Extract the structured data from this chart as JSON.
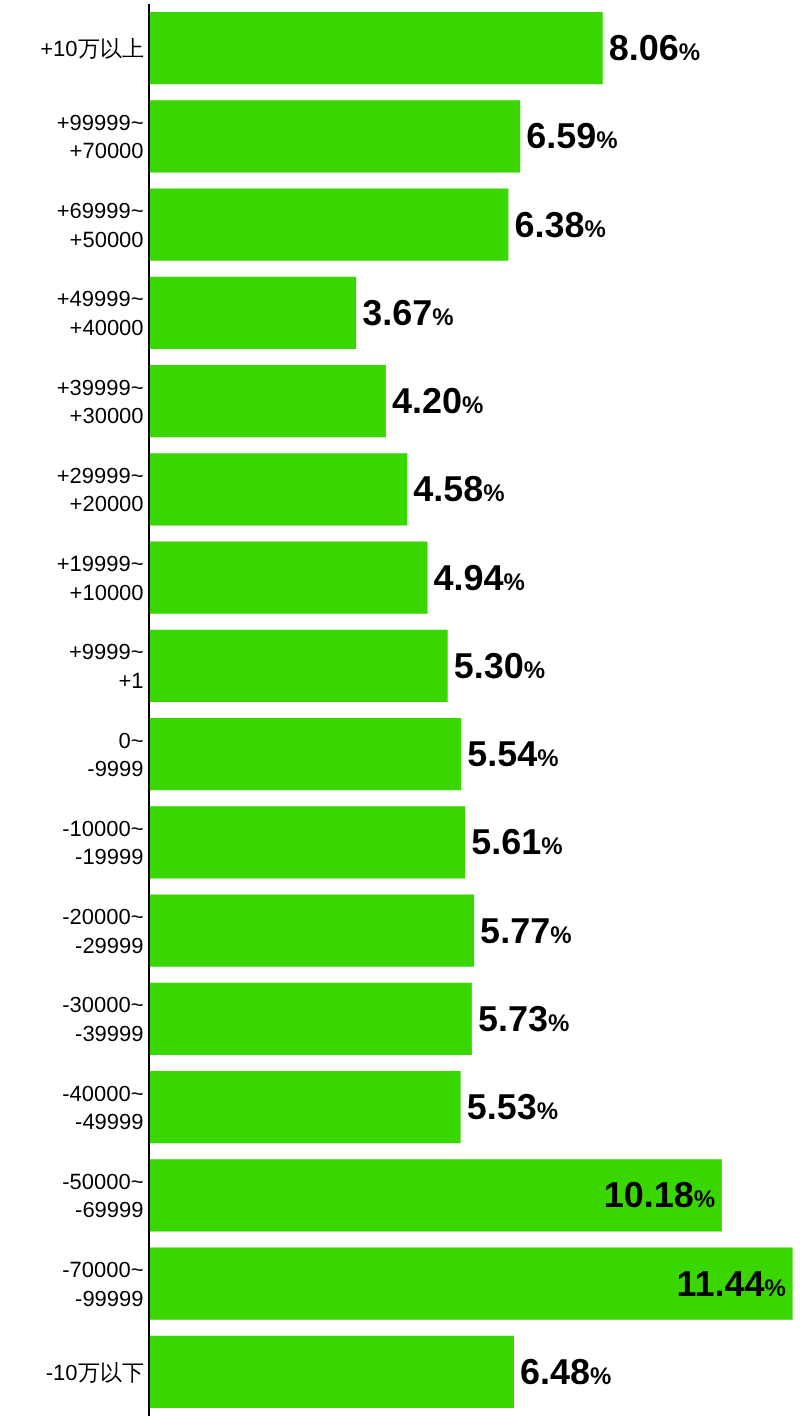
{
  "chart_data": {
    "type": "bar",
    "orientation": "horizontal",
    "categories": [
      "+10万以上",
      "+99999~\n+70000",
      "+69999~\n+50000",
      "+49999~\n+40000",
      "+39999~\n+30000",
      "+29999~\n+20000",
      "+19999~\n+10000",
      "+9999~\n+1",
      "0~\n-9999",
      "-10000~\n-19999",
      "-20000~\n-29999",
      "-30000~\n-39999",
      "-40000~\n-49999",
      "-50000~\n-69999",
      "-70000~\n-99999",
      "-10万以下"
    ],
    "values": [
      8.06,
      6.59,
      6.38,
      3.67,
      4.2,
      4.58,
      4.94,
      5.3,
      5.54,
      5.61,
      5.77,
      5.73,
      5.53,
      10.18,
      11.44,
      6.48
    ],
    "value_labels": [
      "8.06%",
      "6.59%",
      "6.38%",
      "3.67%",
      "4.20%",
      "4.58%",
      "4.94%",
      "5.30%",
      "5.54%",
      "5.61%",
      "5.77%",
      "5.73%",
      "5.53%",
      "10.18%",
      "11.44%",
      "6.48%"
    ],
    "color": "#3ad600",
    "xlim": [
      0,
      11.5
    ],
    "tick_labels": "y"
  }
}
